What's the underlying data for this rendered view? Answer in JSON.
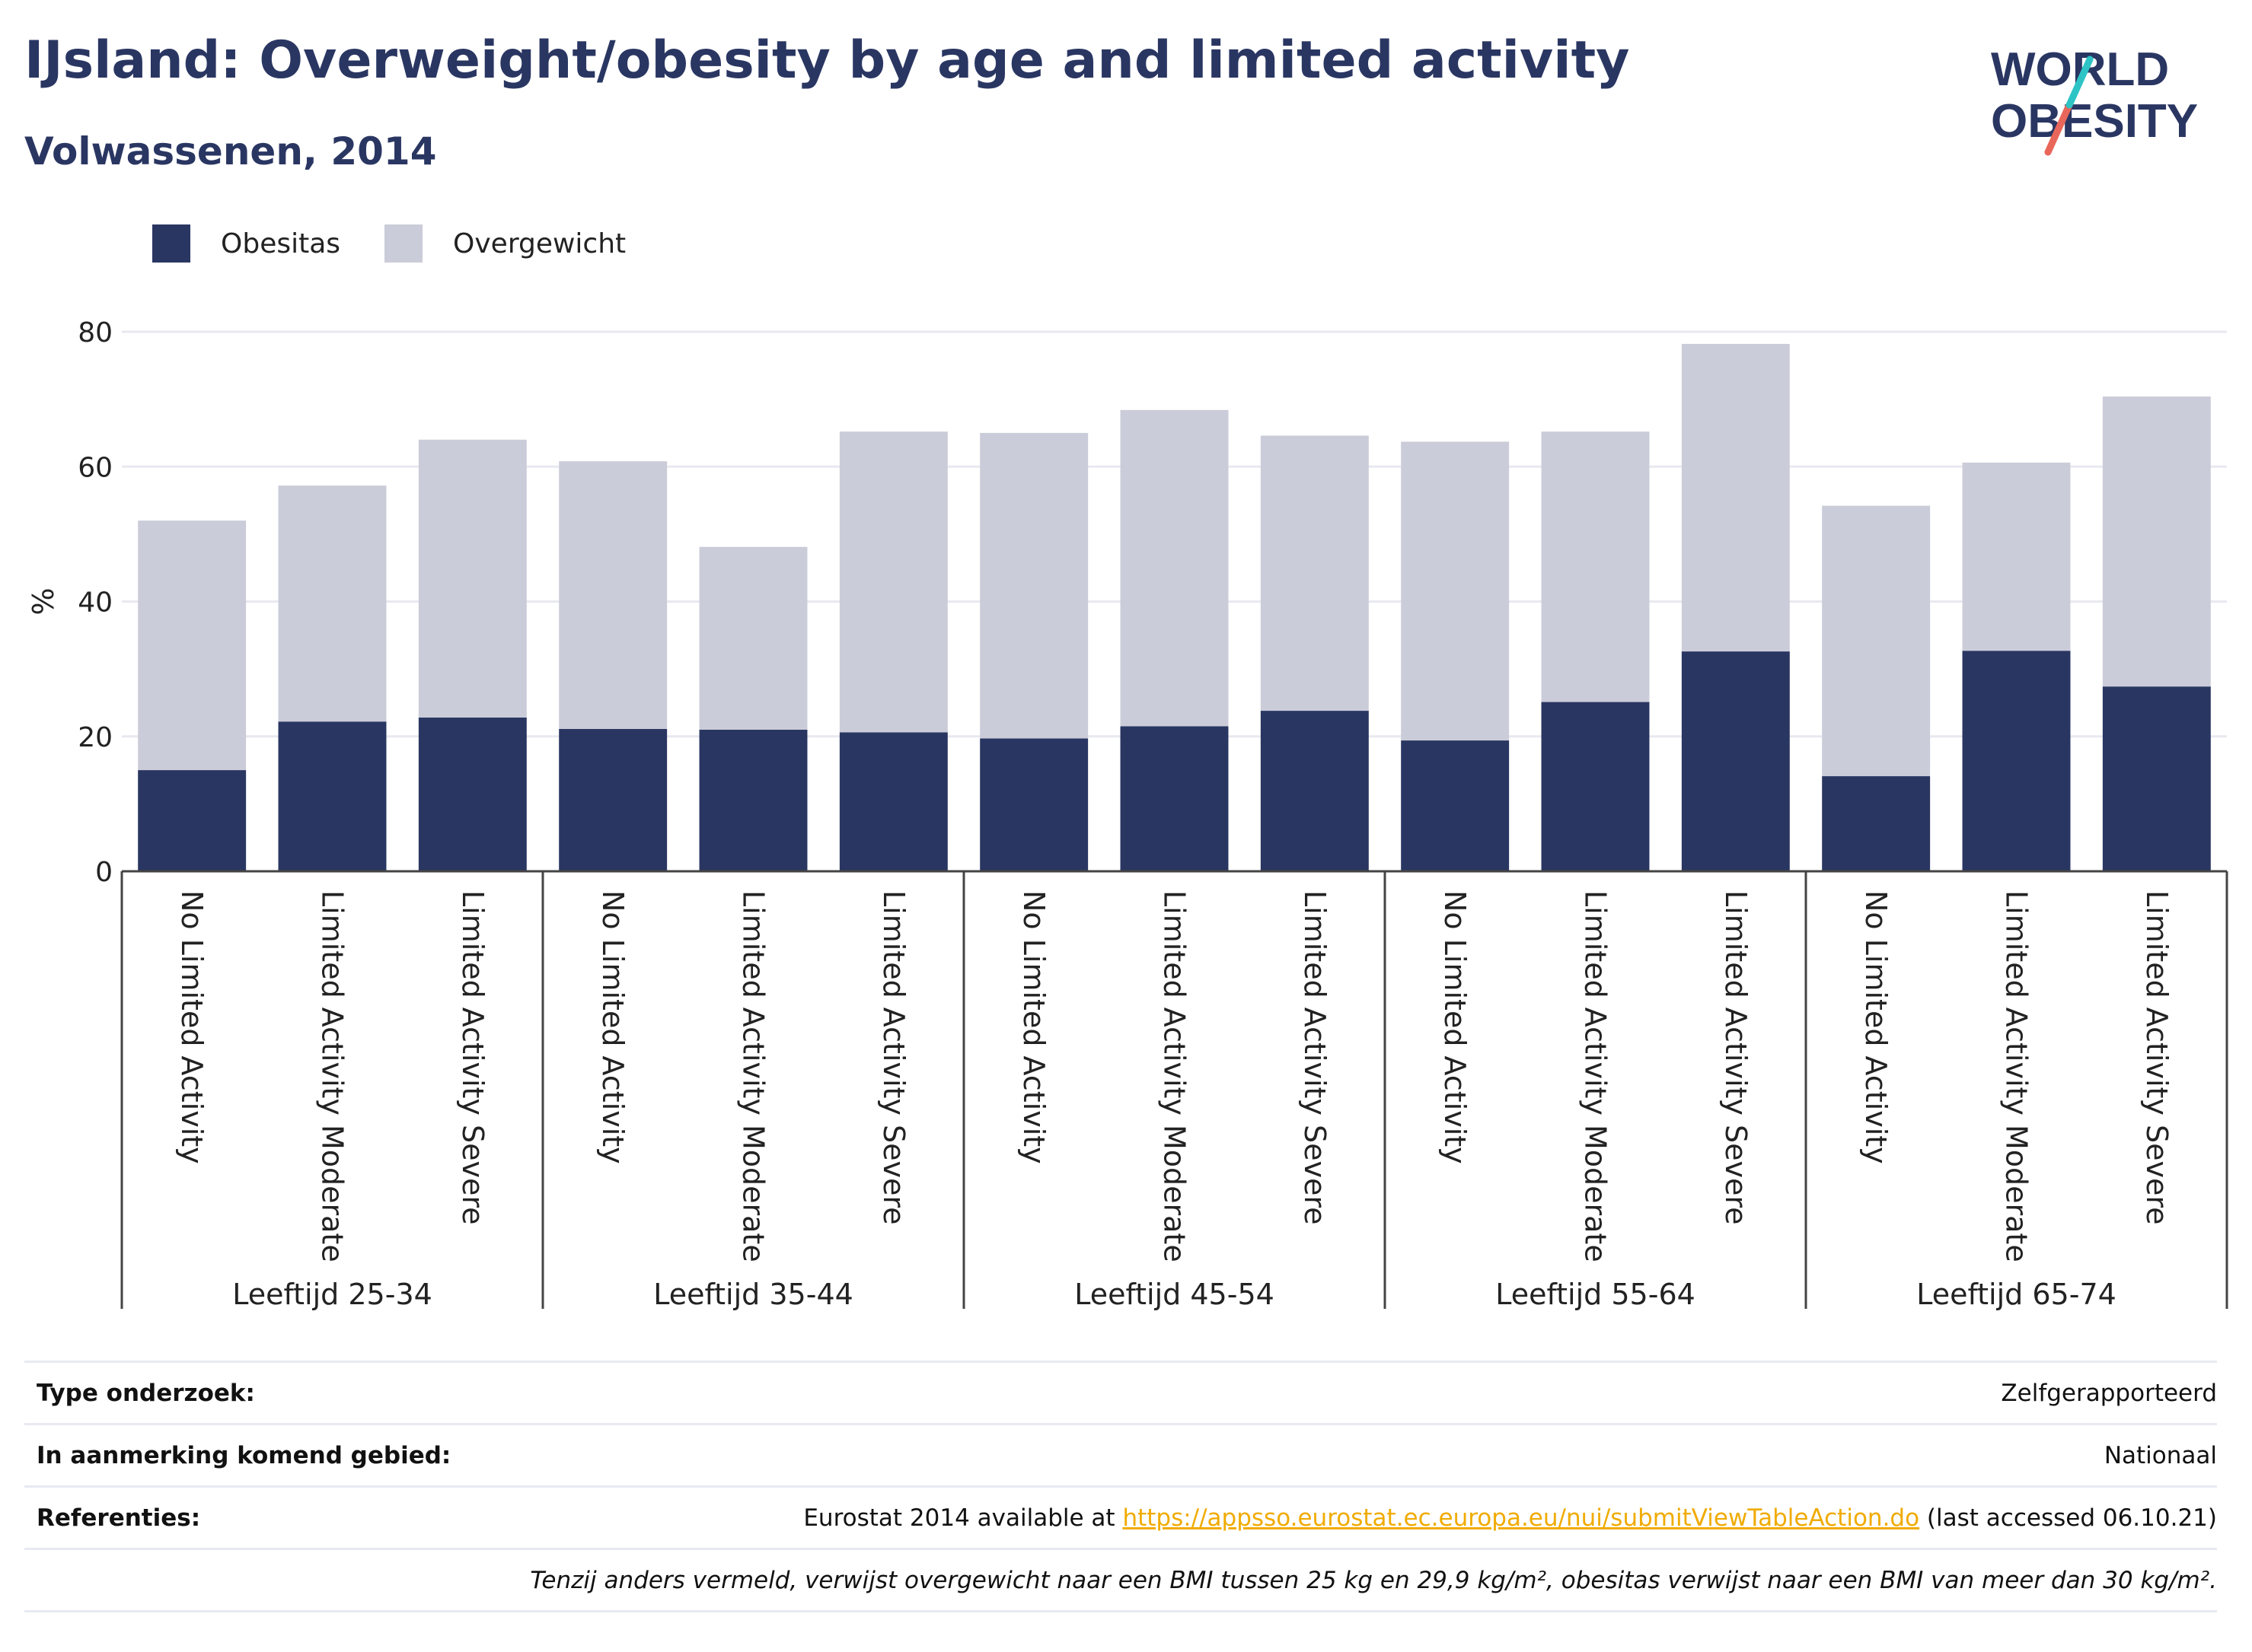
{
  "header": {
    "title": "IJsland: Overweight/obesity by age and limited activity",
    "subtitle": "Volwassenen, 2014"
  },
  "logo": {
    "line1": "WORLD",
    "line2": "OBESITY",
    "slash_color_top": "#2ec4c6",
    "slash_color_bottom": "#e8675a"
  },
  "legend": [
    {
      "label": "Obesitas",
      "color": "#2a3662"
    },
    {
      "label": "Overgewicht",
      "color": "#cbccd9"
    }
  ],
  "chart_data": {
    "type": "bar",
    "stacked": true,
    "ylabel": "%",
    "ylim": [
      0,
      80
    ],
    "yticks": [
      0,
      20,
      40,
      60,
      80
    ],
    "grid": true,
    "groups": [
      {
        "label": "Leeftijd 25-34",
        "categories": [
          "No Limited Activity",
          "Limited Activity Moderate",
          "Limited Activity Severe"
        ]
      },
      {
        "label": "Leeftijd 35-44",
        "categories": [
          "No Limited Activity",
          "Limited Activity Moderate",
          "Limited Activity Severe"
        ]
      },
      {
        "label": "Leeftijd 45-54",
        "categories": [
          "No Limited Activity",
          "Limited Activity Moderate",
          "Limited Activity Severe"
        ]
      },
      {
        "label": "Leeftijd 55-64",
        "categories": [
          "No Limited Activity",
          "Limited Activity Moderate",
          "Limited Activity Severe"
        ]
      },
      {
        "label": "Leeftijd 65-74",
        "categories": [
          "No Limited Activity",
          "Limited Activity Moderate",
          "Limited Activity Severe"
        ]
      }
    ],
    "series": [
      {
        "name": "Obesitas",
        "color": "#2a3662",
        "values": [
          15.0,
          22.2,
          22.8,
          21.1,
          21.0,
          20.6,
          19.7,
          21.5,
          23.8,
          19.4,
          25.1,
          32.6,
          14.1,
          32.7,
          27.4
        ]
      },
      {
        "name": "Overgewicht",
        "color": "#cbccd9",
        "values": [
          37.0,
          35.0,
          41.2,
          39.7,
          27.1,
          44.6,
          45.3,
          46.9,
          40.8,
          44.3,
          40.1,
          45.6,
          40.1,
          27.9,
          43.0
        ]
      }
    ]
  },
  "info": {
    "rows": [
      {
        "label": "Type onderzoek:",
        "value": "Zelfgerapporteerd"
      },
      {
        "label": "In aanmerking komend gebied:",
        "value": "Nationaal"
      },
      {
        "label": "Referenties:",
        "value_prefix": "Eurostat 2014 available at ",
        "link": "https://appsso.eurostat.ec.europa.eu/nui/submitViewTableAction.do",
        "value_suffix": " (last accessed 06.10.21)"
      }
    ],
    "note": "Tenzij anders vermeld, verwijst overgewicht naar een BMI tussen 25 kg en 29,9 kg/m², obesitas verwijst naar een BMI van meer dan 30 kg/m²."
  }
}
